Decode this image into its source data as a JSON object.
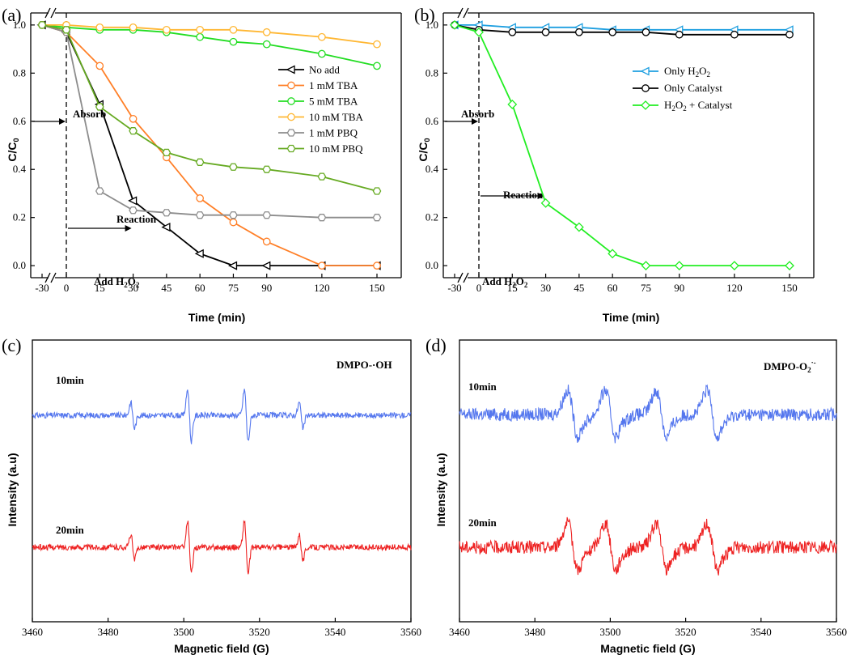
{
  "chart_data": [
    {
      "panel": "(a)",
      "type": "line",
      "xlabel": "Time (min)",
      "ylabel": "C/C0",
      "xticks": [
        "-30",
        "0",
        "15",
        "30",
        "45",
        "60",
        "75",
        "90",
        "120",
        "150"
      ],
      "ylim": [
        -0.05,
        1.05
      ],
      "yticks": [
        "0.0",
        "0.2",
        "0.4",
        "0.6",
        "0.8",
        "1.0"
      ],
      "annotations": {
        "absorb": "Absorb",
        "reaction": "Reaction",
        "add": "Add H",
        "add_sub": "2",
        "add_o": "O",
        "add_sub2": "2"
      },
      "x": [
        -30,
        0,
        15,
        30,
        45,
        60,
        75,
        90,
        120,
        150
      ],
      "series": [
        {
          "name": "No add",
          "color": "#000000",
          "marker": "triangle-left",
          "values": [
            1.0,
            0.97,
            0.67,
            0.27,
            0.16,
            0.05,
            0.0,
            0.0,
            0.0,
            0.0
          ]
        },
        {
          "name": "1 mM TBA",
          "color": "#ff7f27",
          "marker": "circle",
          "values": [
            1.0,
            0.97,
            0.83,
            0.61,
            0.45,
            0.28,
            0.18,
            0.1,
            0.0,
            0.0
          ]
        },
        {
          "name": "5 mM TBA",
          "color": "#22dd22",
          "marker": "circle",
          "values": [
            1.0,
            0.99,
            0.98,
            0.98,
            0.97,
            0.95,
            0.93,
            0.92,
            0.88,
            0.83
          ]
        },
        {
          "name": "10 mM TBA",
          "color": "#ffb733",
          "marker": "circle",
          "values": [
            1.0,
            1.0,
            0.99,
            0.99,
            0.98,
            0.98,
            0.98,
            0.97,
            0.95,
            0.92
          ]
        },
        {
          "name": "1 mM PBQ",
          "color": "#8c8c8c",
          "marker": "hexagon",
          "values": [
            1.0,
            0.97,
            0.31,
            0.23,
            0.22,
            0.21,
            0.21,
            0.21,
            0.2,
            0.2
          ]
        },
        {
          "name": "10 mM PBQ",
          "color": "#66aa22",
          "marker": "hexagon",
          "values": [
            1.0,
            0.98,
            0.66,
            0.56,
            0.47,
            0.43,
            0.41,
            0.4,
            0.37,
            0.31
          ]
        }
      ]
    },
    {
      "panel": "(b)",
      "type": "line",
      "xlabel": "Time (min)",
      "ylabel": "C/C0",
      "xticks": [
        "-30",
        "0",
        "15",
        "30",
        "45",
        "60",
        "75",
        "90",
        "120",
        "150"
      ],
      "ylim": [
        -0.05,
        1.05
      ],
      "yticks": [
        "0.0",
        "0.2",
        "0.4",
        "0.6",
        "0.8",
        "1.0"
      ],
      "annotations": {
        "absorb": "Absorb",
        "reaction": "Reaction",
        "add": "Add H",
        "add_sub": "2",
        "add_o": "O",
        "add_sub2": "2"
      },
      "x": [
        -30,
        0,
        15,
        30,
        45,
        60,
        75,
        90,
        120,
        150
      ],
      "series": [
        {
          "name": "Only H2O2",
          "legend_main": "Only H",
          "legend_sub": "2",
          "legend_o": "O",
          "legend_sub2": "2",
          "color": "#1e9fe0",
          "marker": "triangle-left",
          "values": [
            1.0,
            1.0,
            0.99,
            0.99,
            0.99,
            0.98,
            0.98,
            0.98,
            0.98,
            0.98
          ]
        },
        {
          "name": "Only Catalyst",
          "color": "#000000",
          "marker": "circle",
          "values": [
            1.0,
            0.98,
            0.97,
            0.97,
            0.97,
            0.97,
            0.97,
            0.96,
            0.96,
            0.96
          ]
        },
        {
          "name": "H2O2 + Catalyst",
          "legend_main": "H",
          "legend_sub": "2",
          "legend_o": "O",
          "legend_sub2": "2",
          "legend_tail": " + Catalyst",
          "color": "#22ee22",
          "marker": "diamond",
          "values": [
            1.0,
            0.97,
            0.67,
            0.26,
            0.16,
            0.05,
            0.0,
            0.0,
            0.0,
            0.0
          ]
        }
      ]
    },
    {
      "panel": "(c)",
      "type": "line",
      "title": "DMPO-·OH",
      "xlabel": "Magnetic field (G)",
      "ylabel": "Intensity (a.u)",
      "xlim": [
        3460,
        3560
      ],
      "xticks": [
        "3460",
        "3480",
        "3500",
        "3520",
        "3540",
        "3560"
      ],
      "series": [
        {
          "name": "10min",
          "color": "#5577ee",
          "peaks": [
            3486.5,
            3501.5,
            3516.5,
            3531.0
          ],
          "amplitudes": [
            0.5,
            1.0,
            1.0,
            0.5
          ]
        },
        {
          "name": "20min",
          "color": "#ee2222",
          "peaks": [
            3486.5,
            3501.5,
            3516.5,
            3531.0
          ],
          "amplitudes": [
            0.5,
            1.0,
            1.0,
            0.5
          ]
        }
      ]
    },
    {
      "panel": "(d)",
      "type": "line",
      "title_main": "DMPO-O",
      "title_sub": "2",
      "title_sup": "·-",
      "xlabel": "Magnetic field (G)",
      "ylabel": "Intensity (a.u)",
      "xlim": [
        3460,
        3560
      ],
      "xticks": [
        "3460",
        "3480",
        "3500",
        "3520",
        "3540",
        "3560"
      ],
      "series": [
        {
          "name": "10min",
          "color": "#5577ee",
          "peaks": [
            3490.5,
            3500.5,
            3514.0,
            3527.5
          ],
          "amplitudes": [
            1.0,
            1.0,
            1.0,
            1.0
          ]
        },
        {
          "name": "20min",
          "color": "#ee2222",
          "peaks": [
            3490.5,
            3500.5,
            3514.0,
            3527.5
          ],
          "amplitudes": [
            1.0,
            1.0,
            1.0,
            1.0
          ]
        }
      ]
    }
  ]
}
